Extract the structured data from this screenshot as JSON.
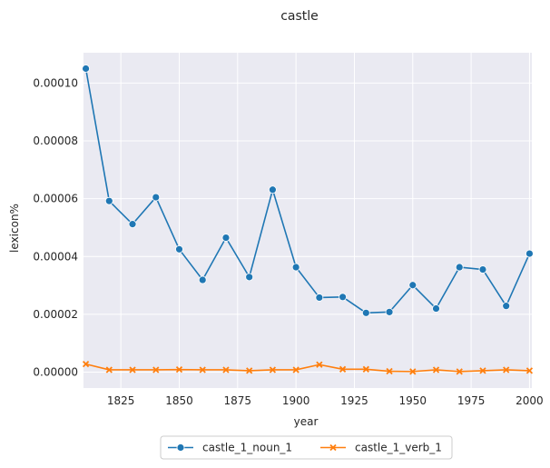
{
  "chart_data": {
    "type": "line",
    "title": "castle",
    "xlabel": "year",
    "ylabel": "lexicon%",
    "xlim": [
      1809,
      2001
    ],
    "ylim": [
      -5.5e-06,
      0.0001105
    ],
    "x_ticks": [
      1825,
      1850,
      1875,
      1900,
      1925,
      1950,
      1975,
      2000
    ],
    "x_tick_labels": [
      "1825",
      "1850",
      "1875",
      "1900",
      "1925",
      "1950",
      "1975",
      "2000"
    ],
    "y_ticks": [
      0,
      2e-05,
      4e-05,
      6e-05,
      8e-05,
      0.0001
    ],
    "y_tick_labels": [
      "0.00000",
      "0.00002",
      "0.00004",
      "0.00006",
      "0.00008",
      "0.00010"
    ],
    "grid": true,
    "legend_position": "bottom-center",
    "x": [
      1810,
      1820,
      1830,
      1840,
      1850,
      1860,
      1870,
      1880,
      1890,
      1900,
      1910,
      1920,
      1930,
      1940,
      1950,
      1960,
      1970,
      1980,
      1990,
      2000
    ],
    "series": [
      {
        "name": "castle_1_noun_1",
        "color": "#1f77b4",
        "marker": "circle",
        "values": [
          0.000105,
          5.92e-05,
          5.12e-05,
          6.05e-05,
          4.25e-05,
          3.19e-05,
          4.65e-05,
          3.29e-05,
          6.31e-05,
          3.63e-05,
          2.58e-05,
          2.6e-05,
          2.05e-05,
          2.08e-05,
          3.01e-05,
          2.2e-05,
          3.63e-05,
          3.55e-05,
          2.29e-05,
          4.1e-05
        ]
      },
      {
        "name": "castle_1_verb_1",
        "color": "#ff7f0e",
        "marker": "x",
        "values": [
          2.8e-06,
          8e-07,
          8e-07,
          8e-07,
          9e-07,
          8e-07,
          8e-07,
          5e-07,
          8e-07,
          8e-07,
          2.6e-06,
          1e-06,
          1e-06,
          3e-07,
          2e-07,
          8e-07,
          2e-07,
          5e-07,
          8e-07,
          5e-07
        ]
      }
    ]
  }
}
